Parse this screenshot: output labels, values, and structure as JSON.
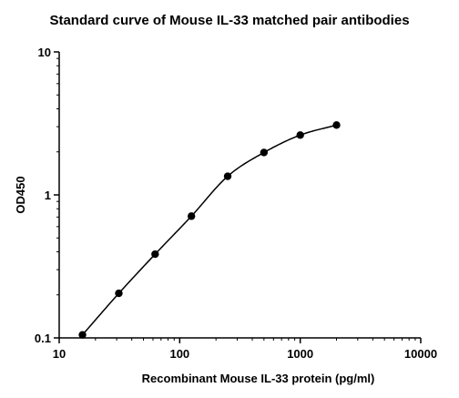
{
  "chart_data": {
    "type": "scatter",
    "title": "Standard curve of Mouse IL-33 matched pair antibodies",
    "xlabel": "Recombinant Mouse IL-33 protein (pg/ml)",
    "ylabel": "OD450",
    "xscale": "log",
    "yscale": "log",
    "xlim": [
      10,
      10000
    ],
    "ylim": [
      0.1,
      10
    ],
    "x_ticks": [
      "10",
      "100",
      "1000",
      "10000"
    ],
    "y_ticks": [
      "0.1",
      "1",
      "10"
    ],
    "grid": false,
    "legend": "none",
    "fit": "sigmoidal curve",
    "series": [
      {
        "x": [
          15.6,
          31.25,
          62.5,
          125,
          250,
          500,
          1000,
          2000
        ],
        "y": [
          0.105,
          0.205,
          0.385,
          0.71,
          1.35,
          1.98,
          2.62,
          3.08
        ]
      }
    ],
    "colors": {
      "marker": "#000000",
      "line": "#000000"
    }
  }
}
